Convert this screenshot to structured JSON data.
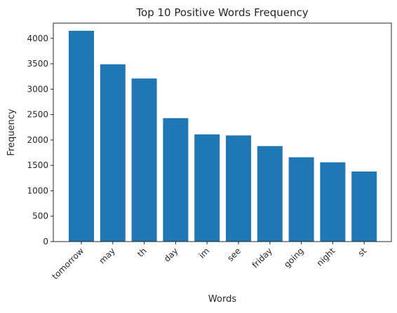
{
  "chart_data": {
    "type": "bar",
    "title": "Top 10 Positive Words Frequency",
    "xlabel": "Words",
    "ylabel": "Frequency",
    "categories": [
      "tomorrow",
      "may",
      "th",
      "day",
      "im",
      "see",
      "friday",
      "going",
      "night",
      "st"
    ],
    "values": [
      4150,
      3490,
      3210,
      2430,
      2110,
      2090,
      1880,
      1660,
      1560,
      1380
    ],
    "ylim": [
      0,
      4300
    ],
    "yticks": [
      0,
      500,
      1000,
      1500,
      2000,
      2500,
      3000,
      3500,
      4000
    ],
    "grid": false,
    "bar_color": "#1f77b4",
    "axis_color": "#262626"
  }
}
